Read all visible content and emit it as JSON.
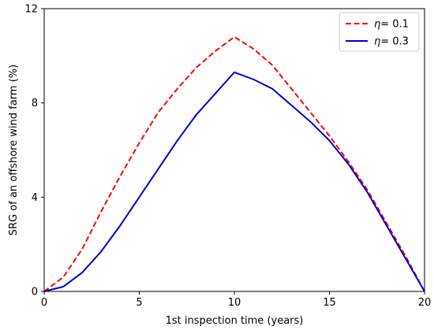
{
  "chart_data": {
    "type": "line",
    "xlabel": "1st inspection time (years)",
    "ylabel": "SRG of an offshore wind farm (%)",
    "xlim": [
      0,
      20
    ],
    "ylim": [
      0,
      12
    ],
    "xticks": [
      0,
      5,
      10,
      15,
      20
    ],
    "yticks": [
      0,
      4,
      8,
      12
    ],
    "grid": false,
    "legend_position": "top-right",
    "series": [
      {
        "name": "= 0.1",
        "symbol": "η",
        "color": "#ff0000",
        "style": "dashed",
        "x": [
          0,
          1,
          2,
          3,
          4,
          5,
          6,
          7,
          8,
          9,
          10,
          11,
          12,
          13,
          14,
          15,
          16,
          17,
          18,
          19,
          20
        ],
        "values": [
          0.0,
          0.6,
          1.8,
          3.4,
          4.9,
          6.3,
          7.6,
          8.6,
          9.5,
          10.2,
          10.8,
          10.3,
          9.6,
          8.6,
          7.6,
          6.6,
          5.5,
          4.3,
          2.9,
          1.5,
          0.0
        ]
      },
      {
        "name": "= 0.3",
        "symbol": "η",
        "color": "#0000cc",
        "style": "solid",
        "x": [
          0,
          1,
          2,
          3,
          4,
          5,
          6,
          7,
          8,
          9,
          10,
          11,
          12,
          13,
          14,
          15,
          16,
          17,
          18,
          19,
          20
        ],
        "values": [
          0.0,
          0.2,
          0.8,
          1.7,
          2.8,
          4.0,
          5.2,
          6.4,
          7.5,
          8.4,
          9.3,
          9.0,
          8.6,
          7.9,
          7.2,
          6.4,
          5.4,
          4.2,
          2.8,
          1.4,
          0.0
        ]
      }
    ]
  }
}
